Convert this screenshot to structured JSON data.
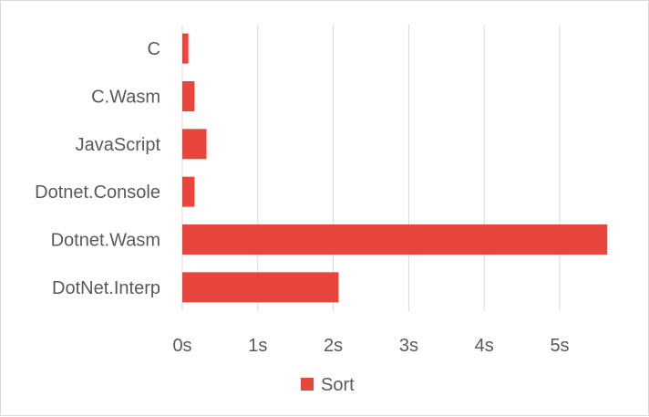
{
  "chart_data": {
    "type": "bar",
    "orientation": "horizontal",
    "categories": [
      "C",
      "C.Wasm",
      "JavaScript",
      "Dotnet.Console",
      "Dotnet.Wasm",
      "DotNet.Interp"
    ],
    "series": [
      {
        "name": "Sort",
        "values": [
          0.08,
          0.16,
          0.32,
          0.16,
          5.63,
          2.07
        ],
        "color": "#E8453C"
      }
    ],
    "xlim": [
      0,
      6
    ],
    "xticks": [
      "0s",
      "1s",
      "2s",
      "3s",
      "4s",
      "5s"
    ],
    "xtick_values": [
      0,
      1,
      2,
      3,
      4,
      5
    ],
    "grid": "vertical",
    "legend_position": "bottom"
  }
}
